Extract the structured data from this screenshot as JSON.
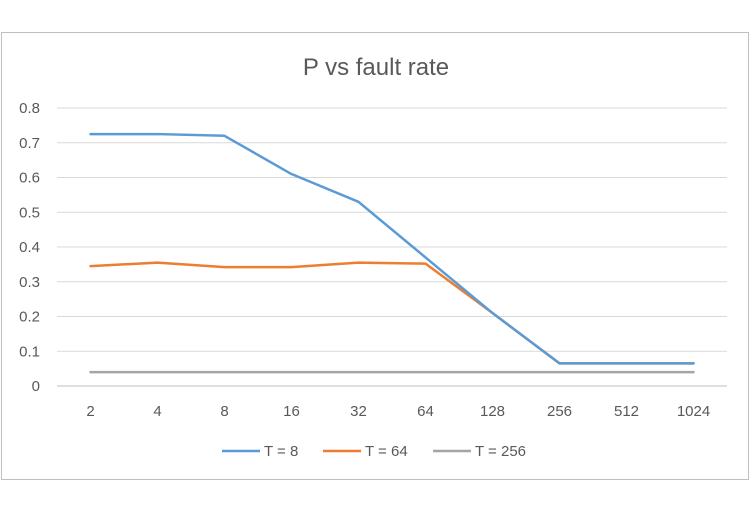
{
  "chart_data": {
    "type": "line",
    "title": "P vs fault rate",
    "xlabel": "",
    "ylabel": "",
    "categories": [
      "2",
      "4",
      "8",
      "16",
      "32",
      "64",
      "128",
      "256",
      "512",
      "1024"
    ],
    "ylim": [
      0,
      0.8
    ],
    "yticks": [
      "0",
      "0.1",
      "0.2",
      "0.3",
      "0.4",
      "0.5",
      "0.6",
      "0.7",
      "0.8"
    ],
    "grid": true,
    "legend_position": "bottom",
    "series": [
      {
        "name": "T = 8",
        "color": "#5b9bd5",
        "values": [
          0.725,
          0.725,
          0.72,
          0.61,
          0.53,
          0.37,
          0.21,
          0.065,
          0.065,
          0.065
        ]
      },
      {
        "name": "T = 64",
        "color": "#ed7d31",
        "values": [
          0.345,
          0.355,
          0.342,
          0.342,
          0.355,
          0.352,
          0.21,
          0.065,
          0.065,
          0.065
        ]
      },
      {
        "name": "T = 256",
        "color": "#a5a5a5",
        "values": [
          0.04,
          0.04,
          0.04,
          0.04,
          0.04,
          0.04,
          0.04,
          0.04,
          0.04,
          0.04
        ]
      }
    ]
  }
}
